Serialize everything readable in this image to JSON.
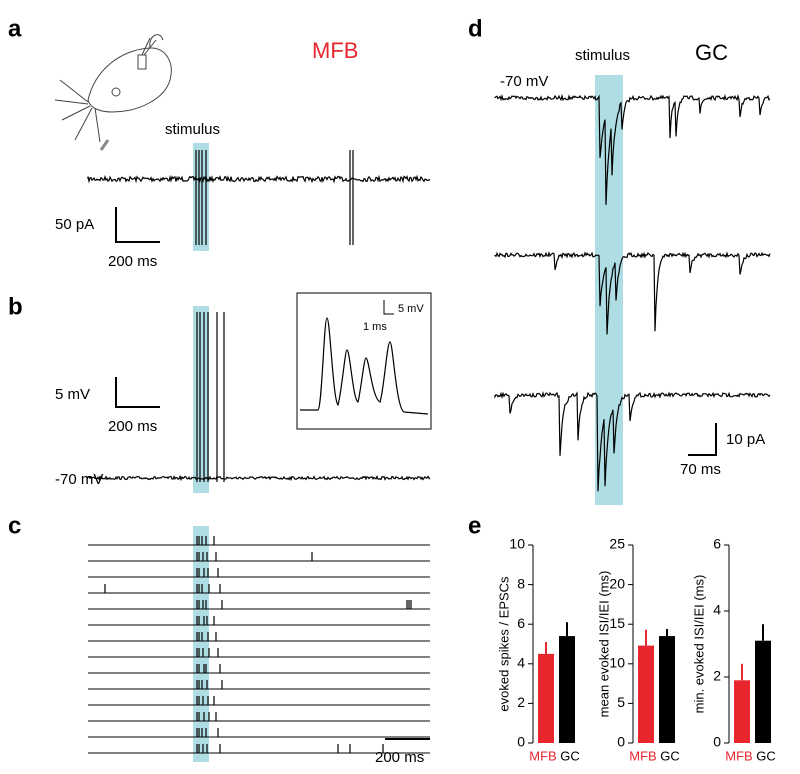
{
  "panels": {
    "a": {
      "letter": "a",
      "region": "MFB",
      "stimulus": "stimulus",
      "scale_y": "50 pA",
      "scale_x": "200 ms"
    },
    "b": {
      "letter": "b",
      "scale_y": "5 mV",
      "scale_x": "200 ms",
      "baseline": "-70 mV",
      "inset_scale_y": "5 mV",
      "inset_scale_x": "1 ms"
    },
    "c": {
      "letter": "c",
      "scale_x": "200 ms"
    },
    "d": {
      "letter": "d",
      "stimulus": "stimulus",
      "cell": "GC",
      "baseline": "-70 mV",
      "scale_y": "10 pA",
      "scale_x": "70 ms"
    },
    "e": {
      "letter": "e"
    }
  },
  "chart_data": [
    {
      "type": "bar",
      "ylabel": "evoked spikes / EPSCs",
      "categories": [
        "MFB",
        "GC"
      ],
      "values": [
        4.5,
        5.4
      ],
      "errors": [
        0.6,
        0.7
      ],
      "colors": [
        "#e8262e",
        "#000000"
      ],
      "ylim": [
        0,
        10
      ],
      "yticks": [
        0,
        2,
        4,
        6,
        8,
        10
      ]
    },
    {
      "type": "bar",
      "ylabel": "mean evoked ISI/IEI (ms)",
      "categories": [
        "MFB",
        "GC"
      ],
      "values": [
        12.3,
        13.5
      ],
      "errors": [
        2.0,
        0.9
      ],
      "colors": [
        "#e8262e",
        "#000000"
      ],
      "ylim": [
        0,
        25
      ],
      "yticks": [
        0,
        5,
        10,
        15,
        20,
        25
      ]
    },
    {
      "type": "bar",
      "ylabel": "min. evoked ISI/IEI (ms)",
      "categories": [
        "MFB",
        "GC"
      ],
      "values": [
        1.9,
        3.1
      ],
      "errors": [
        0.5,
        0.5
      ],
      "colors": [
        "#e8262e",
        "#000000"
      ],
      "ylim": [
        0,
        6
      ],
      "yticks": [
        0,
        2,
        4,
        6
      ]
    }
  ]
}
